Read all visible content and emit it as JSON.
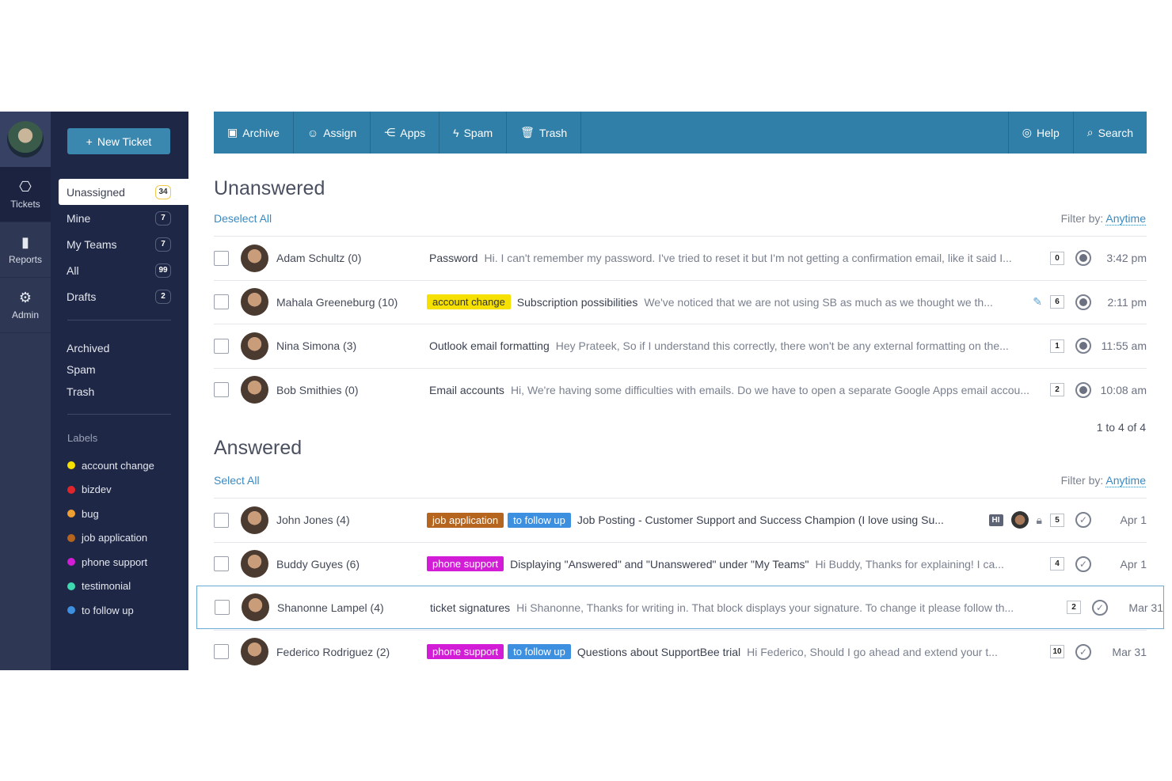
{
  "rail": [
    {
      "label": "Tickets",
      "icon": "ticket-icon",
      "active": true
    },
    {
      "label": "Reports",
      "icon": "bar-chart-icon"
    },
    {
      "label": "Admin",
      "icon": "gear-icon"
    }
  ],
  "sidebar": {
    "new_ticket": "New Ticket",
    "views": [
      {
        "label": "Unassigned",
        "count": "34",
        "active": true
      },
      {
        "label": "Mine",
        "count": "7"
      },
      {
        "label": "My Teams",
        "count": "7"
      },
      {
        "label": "All",
        "count": "99"
      },
      {
        "label": "Drafts",
        "count": "2"
      }
    ],
    "folders": [
      "Archived",
      "Spam",
      "Trash"
    ],
    "labels_heading": "Labels",
    "labels": [
      {
        "name": "account change",
        "color": "#f5e000"
      },
      {
        "name": "bizdev",
        "color": "#e0262b"
      },
      {
        "name": "bug",
        "color": "#f0a030"
      },
      {
        "name": "job application",
        "color": "#b5651d"
      },
      {
        "name": "phone support",
        "color": "#d21cd6"
      },
      {
        "name": "testimonial",
        "color": "#3fd9b0"
      },
      {
        "name": "to follow up",
        "color": "#3d8fe0"
      }
    ]
  },
  "toolbar": {
    "left": [
      {
        "label": "Archive",
        "icon": "archive-icon"
      },
      {
        "label": "Assign",
        "icon": "user-icon"
      },
      {
        "label": "Apps",
        "icon": "share-icon"
      },
      {
        "label": "Spam",
        "icon": "bolt-icon"
      },
      {
        "label": "Trash",
        "icon": "trash-icon"
      }
    ],
    "right": [
      {
        "label": "Help",
        "icon": "lifebuoy-icon"
      },
      {
        "label": "Search",
        "icon": "search-icon"
      }
    ]
  },
  "unanswered": {
    "title": "Unanswered",
    "select": "Deselect All",
    "filter_label": "Filter by:",
    "filter_value": "Anytime",
    "pagination": "1 to 4 of 4",
    "rows": [
      {
        "name": "Adam Schultz (0)",
        "tags": [],
        "subject": "Password",
        "preview": "Hi. I can't remember my password. I've tried to reset it but I'm not getting a confirmation email, like it said I...",
        "count": "0",
        "time": "3:42 pm"
      },
      {
        "name": "Mahala Greeneburg (10)",
        "tags": [
          "account change"
        ],
        "subject": "Subscription possibilities",
        "preview": "We've noticed that we are not using SB as much as we thought we th...",
        "count": "6",
        "time": "2:11 pm",
        "draft": true
      },
      {
        "name": "Nina Simona (3)",
        "tags": [],
        "subject": "Outlook email formatting",
        "preview": "Hey Prateek, So if I understand this correctly, there won't be any external formatting on the...",
        "count": "1",
        "time": "11:55 am"
      },
      {
        "name": "Bob Smithies (0)",
        "tags": [],
        "subject": "Email accounts",
        "preview": "Hi, We're having some difficulties with emails. Do we have to open a separate Google Apps email accou...",
        "count": "2",
        "time": "10:08 am"
      }
    ]
  },
  "answered": {
    "title": "Answered",
    "select": "Select All",
    "filter_label": "Filter by:",
    "filter_value": "Anytime",
    "rows": [
      {
        "name": "John Jones (4)",
        "tags": [
          "job application",
          "to follow up"
        ],
        "subject": "Job Posting - Customer Support and Success Champion (I love using Su...",
        "preview": "",
        "count": "5",
        "time": "Apr 1",
        "badge": "HI",
        "assignee": true,
        "locked": true
      },
      {
        "name": "Buddy Guyes (6)",
        "tags": [
          "phone support"
        ],
        "subject": "Displaying \"Answered\" and \"Unanswered\" under \"My Teams\"",
        "preview": "Hi Buddy, Thanks for explaining! I ca...",
        "count": "4",
        "time": "Apr 1"
      },
      {
        "name": "Shanonne Lampel (4)",
        "tags": [],
        "subject": "ticket signatures",
        "preview": "Hi Shanonne, Thanks for writing in. That block displays your signature. To change it please follow th...",
        "count": "2",
        "time": "Mar 31",
        "selected": true
      },
      {
        "name": "Federico Rodriguez (2)",
        "tags": [
          "phone support",
          "to follow up"
        ],
        "subject": "Questions about SupportBee trial",
        "preview": "Hi Federico, Should I go ahead and extend your t...",
        "count": "10",
        "time": "Mar 31"
      }
    ]
  }
}
